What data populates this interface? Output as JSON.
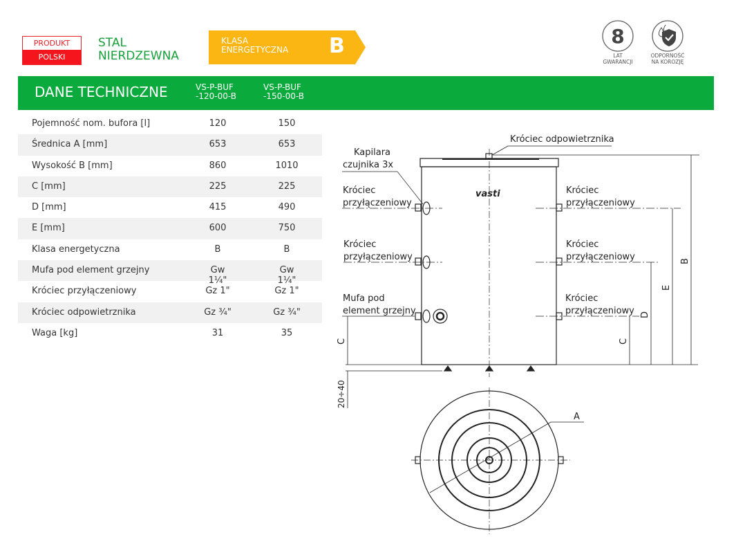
{
  "header": {
    "produkt_top": "PRODUKT",
    "produkt_bottom": "POLSKI",
    "material_line1": "STAL",
    "material_line2": "NIERDZEWNA",
    "energy_label_line1": "KLASA",
    "energy_label_line2": "ENERGETYCZNA",
    "energy_class": "B",
    "warranty_number": "8",
    "warranty_line1": "LAT",
    "warranty_line2": "GWARANCJI",
    "corrosion_line1": "ODPORNOŚĆ",
    "corrosion_line2": "NA KOROZJĘ",
    "colors": {
      "green": "#0aab3c",
      "red": "#f5161d",
      "amber": "#fbb614"
    }
  },
  "section": {
    "title": "DANE TECHNICZNE",
    "models": [
      {
        "line1": "VS-P-BUF",
        "line2": "-120-00-B"
      },
      {
        "line1": "VS-P-BUF",
        "line2": "-150-00-B"
      }
    ]
  },
  "table": [
    {
      "label": "Pojemność nom. bufora [l]",
      "v1": "120",
      "v2": "150"
    },
    {
      "label": "Średnica A [mm]",
      "v1": "653",
      "v2": "653"
    },
    {
      "label": "Wysokość B [mm]",
      "v1": "860",
      "v2": "1010"
    },
    {
      "label": "C [mm]",
      "v1": "225",
      "v2": "225"
    },
    {
      "label": "D [mm]",
      "v1": "415",
      "v2": "490"
    },
    {
      "label": " E [mm]",
      "v1": "600",
      "v2": "750"
    },
    {
      "label": "Klasa energetyczna",
      "v1": "B",
      "v2": "B"
    },
    {
      "label": "Mufa pod element grzejny",
      "v1": "Gw 1¼\"",
      "v2": "Gw 1¼\""
    },
    {
      "label": "Króciec przyłączeniowy",
      "v1": "Gz 1\"",
      "v2": "Gz 1\""
    },
    {
      "label": "Króciec odpowietrznika",
      "v1": "Gz ¾\"",
      "v2": "Gz ¾\""
    },
    {
      "label": "Waga [kg]",
      "v1": "31",
      "v2": "35"
    }
  ],
  "drawing": {
    "vent": "Króciec odpowietrznika",
    "capillary_1": "Kapilara",
    "capillary_2": "czujnika 3x",
    "port_1": "Króciec",
    "port_2": "przyłączeniowy",
    "heater_1": "Mufa pod",
    "heater_2": "element grzejny",
    "brand": "vasti",
    "dims": {
      "A": "A",
      "B": "B",
      "C": "C",
      "D": "D",
      "E": "E",
      "feet": "20÷40"
    }
  }
}
